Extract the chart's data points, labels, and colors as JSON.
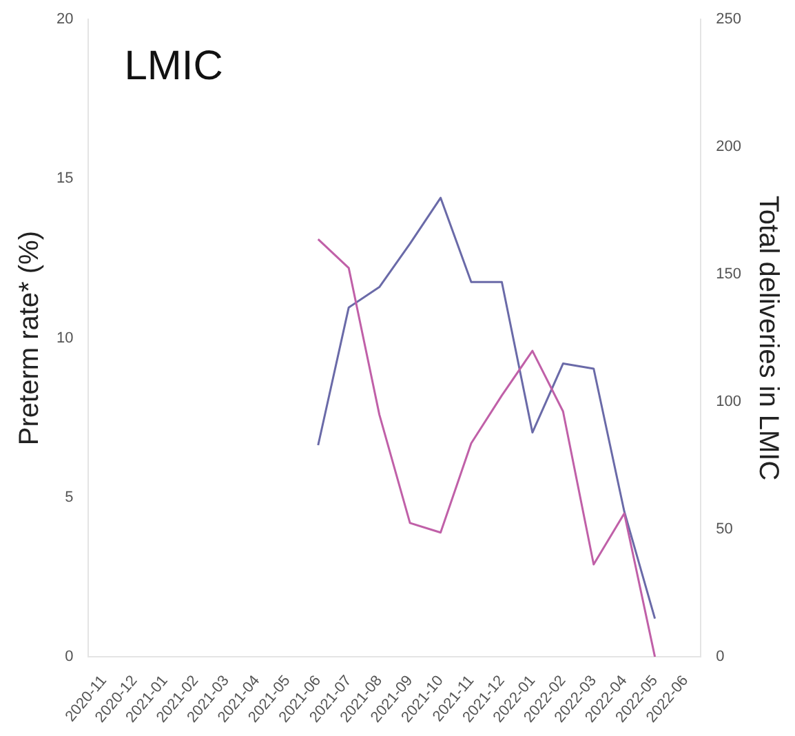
{
  "chart_data": {
    "type": "line",
    "title": "LMIC",
    "ylabel": "Preterm rate* (%)",
    "y2label": "Total deliveries in LMIC",
    "categories": [
      "2020-11",
      "2020-12",
      "2021-01",
      "2021-02",
      "2021-03",
      "2021-04",
      "2021-05",
      "2021-06",
      "2021-07",
      "2021-08",
      "2021-09",
      "2021-10",
      "2021-11",
      "2021-12",
      "2022-01",
      "2022-02",
      "2022-03",
      "2022-04",
      "2022-05",
      "2022-06"
    ],
    "series": [
      {
        "color": "#c060a8",
        "values": [
          null,
          null,
          null,
          null,
          null,
          null,
          null,
          13.1,
          12.2,
          7.6,
          4.2,
          3.9,
          6.7,
          8.2,
          9.6,
          7.7,
          2.9,
          4.5,
          0,
          null
        ]
      },
      {
        "color": "#6a6aa8",
        "axis": "y2",
        "values": [
          null,
          null,
          null,
          null,
          null,
          null,
          null,
          83,
          137,
          145,
          162,
          180,
          147,
          147,
          88,
          115,
          113,
          57,
          15,
          null
        ]
      }
    ],
    "ylim": [
      0,
      20
    ],
    "yticks": [
      0,
      5,
      10,
      15,
      20
    ],
    "y2lim": [
      0,
      250
    ],
    "y2ticks": [
      0,
      50,
      100,
      150,
      200,
      250
    ],
    "grid": false,
    "legend": false,
    "marker": "none",
    "line_style": "solid"
  }
}
